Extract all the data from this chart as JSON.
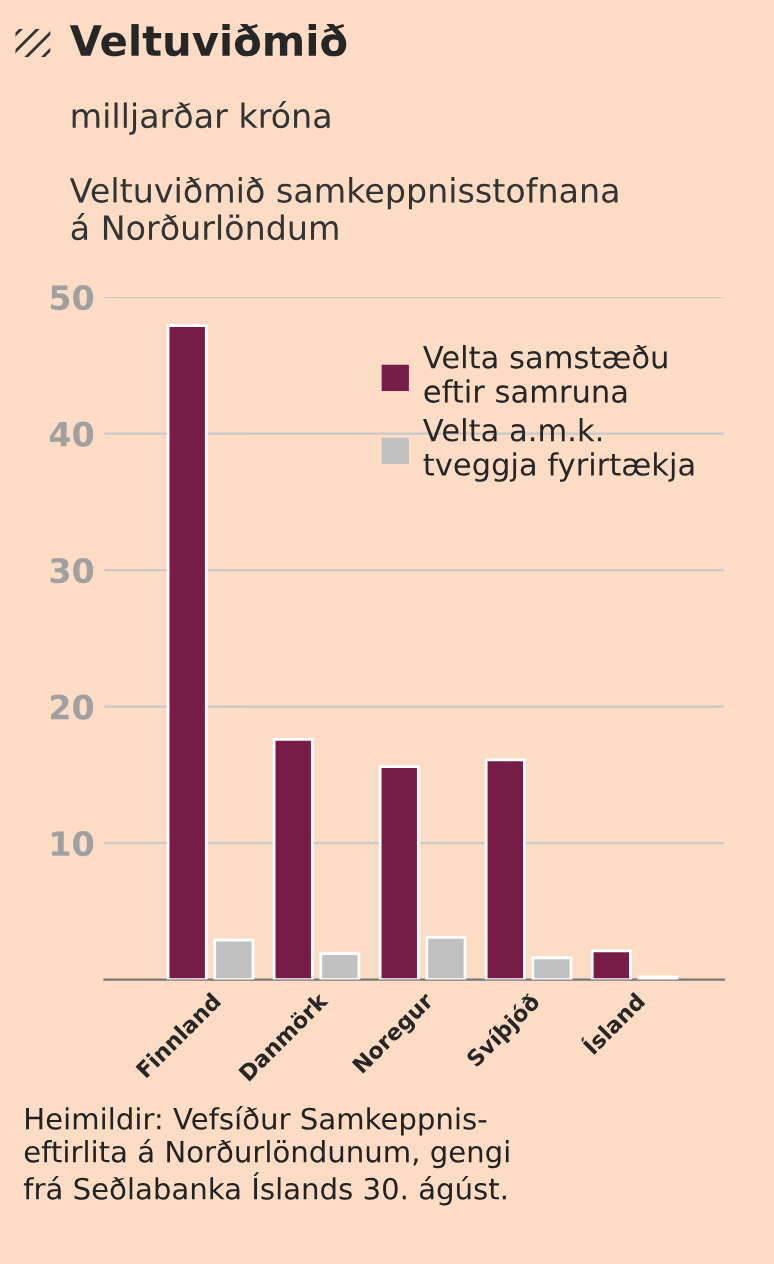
{
  "chart_data": {
    "type": "bar",
    "title": "Veltuviðmið",
    "subtitle": "milljarðar króna\n\nVeltuviðmið samkeppnisstofnana\ná Norðurlöndum",
    "categories": [
      "Finnland",
      "Danmörk",
      "Noregur",
      "Svíþjóð",
      "Ísland"
    ],
    "series": [
      {
        "name": "Velta samstæðu\neftir samruna",
        "color": "#761c47",
        "values": [
          47.9,
          17.6,
          15.6,
          16.1,
          2.1
        ]
      },
      {
        "name": "Velta a.m.k.\ntveggja fyrirtækja",
        "color": "#c0c0c0",
        "values": [
          2.9,
          1.9,
          3.1,
          1.6,
          0.2
        ]
      }
    ],
    "ylim": [
      0,
      50
    ],
    "yticks": [
      10,
      20,
      30,
      40,
      50
    ],
    "grid": "y",
    "legend": "top right",
    "annotations": [
      "Heimildir: Vefsíður Samkeppnis-\neftirlita á Norðurlöndunum, gengi\nfrá Seðlabanka Íslands 30. ágúst."
    ]
  }
}
